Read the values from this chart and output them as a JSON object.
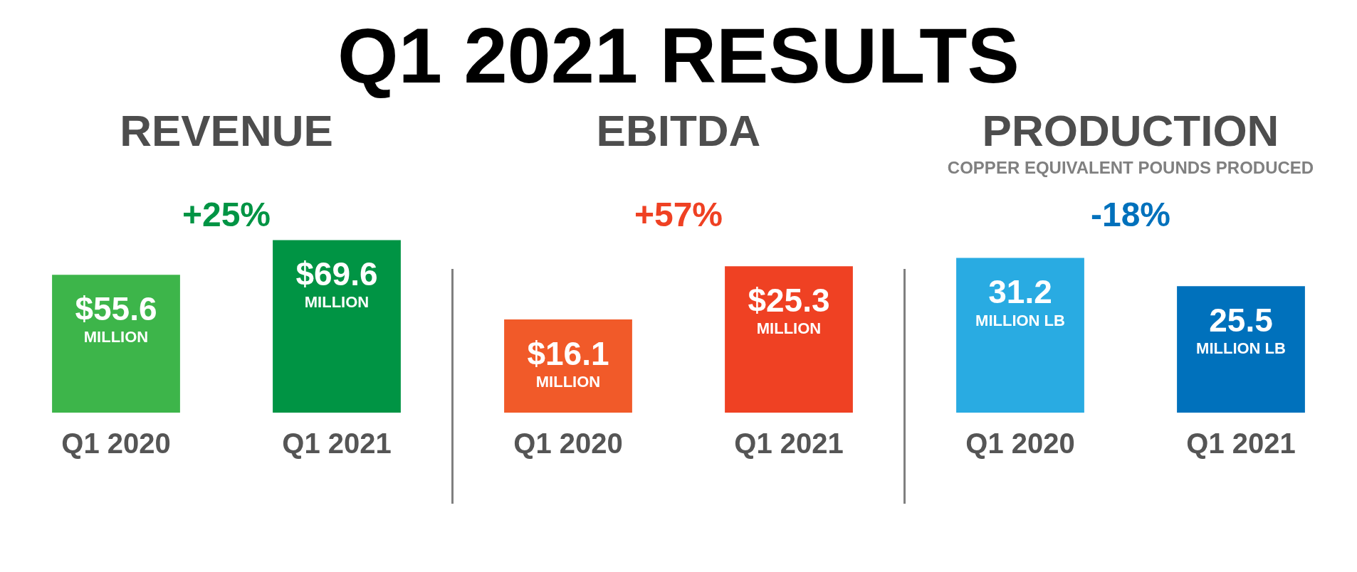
{
  "chart_data": [
    {
      "type": "other",
      "title": "Q1 2021 RESULTS"
    },
    {
      "type": "bar",
      "title": "REVENUE",
      "categories": [
        "Q1 2020",
        "Q1 2021"
      ],
      "values": [
        55.6,
        69.6
      ],
      "colors": [
        "#3db54a",
        "#009444"
      ],
      "value_labels": [
        "$55.6 MILLION",
        "$69.6 MILLION"
      ],
      "annotations": [
        "+25%"
      ]
    },
    {
      "type": "bar",
      "title": "EBITDA",
      "categories": [
        "Q1 2020",
        "Q1 2021"
      ],
      "values": [
        16.1,
        25.3
      ],
      "colors": [
        "#f15a29",
        "#ef4123"
      ],
      "value_labels": [
        "$16.1 MILLION",
        "$25.3 MILLION"
      ],
      "annotations": [
        "+57%"
      ]
    },
    {
      "type": "bar",
      "title": "PRODUCTION",
      "subtitle": "COPPER EQUIVALENT POUNDS PRODUCED",
      "categories": [
        "Q1 2020",
        "Q1 2021"
      ],
      "values": [
        31.2,
        25.5
      ],
      "colors": [
        "#29abe2",
        "#0071bc"
      ],
      "value_labels": [
        "31.2 MILLION LB",
        "25.5 MILLION LB"
      ],
      "annotations": [
        "-18%"
      ]
    }
  ]
}
